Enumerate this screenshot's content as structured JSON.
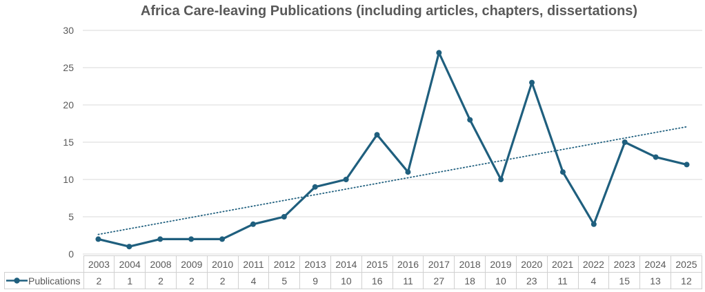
{
  "colors": {
    "series": "#1F5F7E",
    "grid": "#D9D9D9",
    "text": "#595959",
    "table_border": "#D0D0D0",
    "background": "#FFFFFF"
  },
  "chart_data": {
    "type": "line",
    "title": "Africa Care-leaving Publications (including articles, chapters, dissertations)",
    "categories": [
      "2003",
      "2004",
      "2008",
      "2009",
      "2010",
      "2011",
      "2012",
      "2013",
      "2014",
      "2015",
      "2016",
      "2017",
      "2018",
      "2019",
      "2020",
      "2021",
      "2022",
      "2023",
      "2024",
      "2025"
    ],
    "series": [
      {
        "name": "Publications",
        "values": [
          2,
          1,
          2,
          2,
          2,
          4,
          5,
          9,
          10,
          16,
          11,
          27,
          18,
          10,
          23,
          11,
          4,
          15,
          13,
          12
        ]
      }
    ],
    "yticks": [
      "0",
      "5",
      "10",
      "15",
      "20",
      "25",
      "30"
    ],
    "ytick_step": 5,
    "ylim": [
      0,
      30
    ],
    "grid": "horizontal",
    "trendline": "linear-dotted",
    "legend_position": "table-left",
    "data_table": true,
    "xlabel": "",
    "ylabel": ""
  }
}
